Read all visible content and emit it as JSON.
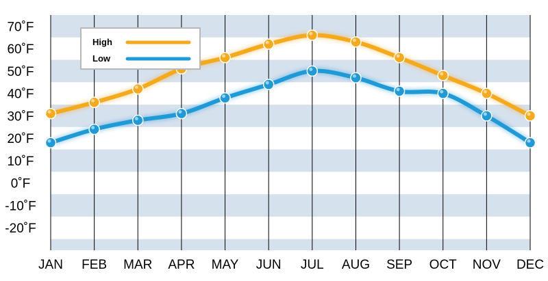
{
  "chart_data": {
    "type": "line",
    "title": "",
    "xlabel": "",
    "ylabel": "",
    "categories": [
      "JAN",
      "FEB",
      "MAR",
      "APR",
      "MAY",
      "JUN",
      "JUL",
      "AUG",
      "SEP",
      "OCT",
      "NOV",
      "DEC"
    ],
    "series": [
      {
        "name": "High",
        "color": "#F5A91C",
        "values": [
          31,
          36,
          42,
          51,
          56,
          62,
          66,
          63,
          56,
          48,
          40,
          30
        ]
      },
      {
        "name": "Low",
        "color": "#1F9AD6",
        "values": [
          18,
          24,
          28,
          31,
          38,
          44,
          50,
          47,
          41,
          40,
          30,
          18
        ]
      }
    ],
    "ylim": [
      -30,
      75
    ],
    "yticks": [
      -20,
      -10,
      0,
      10,
      20,
      30,
      40,
      50,
      60,
      70
    ],
    "ytick_labels": [
      "-20˚F",
      "-10˚F",
      "0˚F",
      "10˚F",
      "20˚F",
      "30˚F",
      "40˚F",
      "50˚F",
      "60˚F",
      "70˚F"
    ],
    "legend_position": "top-left",
    "grid": "horizontal bands, vertical lines",
    "band_color": "#D6E1EE"
  }
}
